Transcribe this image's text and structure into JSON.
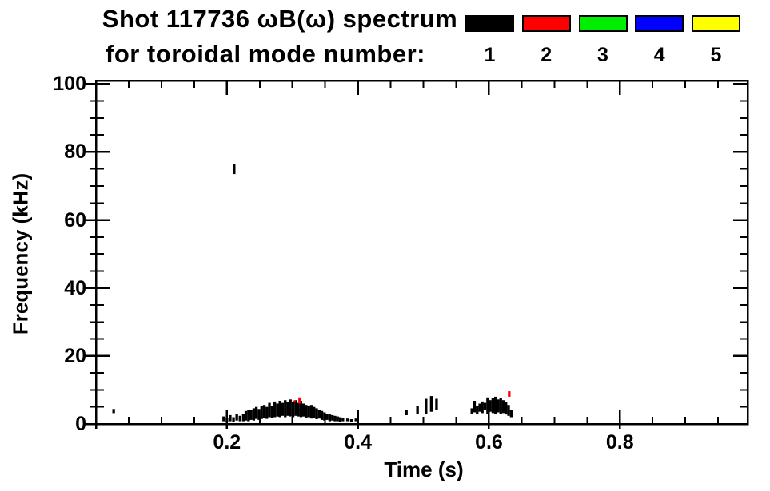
{
  "title": {
    "line1": "Shot 117736 ωB(ω) spectrum",
    "line2": "for toroidal mode number:"
  },
  "legend": {
    "entries": [
      {
        "label": "1",
        "color": "#000000"
      },
      {
        "label": "2",
        "color": "#ff0000"
      },
      {
        "label": "3",
        "color": "#00ee00"
      },
      {
        "label": "4",
        "color": "#0000ff"
      },
      {
        "label": "5",
        "color": "#ffff00"
      }
    ],
    "border_color": "#000000"
  },
  "chart_data": {
    "type": "scatter",
    "title": "Shot 117736 ωB(ω) spectrum for toroidal mode number: 1 2 3 4 5",
    "xlabel": "Time (s)",
    "ylabel": "Frequency (kHz)",
    "xlim": [
      0,
      0.995
    ],
    "ylim": [
      0,
      101
    ],
    "x_major_ticks": [
      0.2,
      0.4,
      0.6,
      0.8
    ],
    "x_tick_labels": [
      "0.2",
      "0.4",
      "0.6",
      "0.8"
    ],
    "x_minor_step": 0.05,
    "y_major_ticks": [
      0,
      20,
      40,
      60,
      80,
      100
    ],
    "y_tick_labels": [
      "0",
      "20",
      "40",
      "60",
      "80",
      "100"
    ],
    "y_minor_step": 5,
    "grid": false,
    "legend_position": "top-right",
    "axis_color": "#000000",
    "background_color": "#ffffff",
    "series": [
      {
        "name": "mode 1",
        "color": "#000000",
        "bands": [
          [
            0.027,
            3.2,
            4.4
          ],
          [
            0.211,
            73.5,
            76.5
          ],
          [
            0.195,
            0.8,
            2.2
          ],
          [
            0.2,
            0.5,
            1.8
          ],
          [
            0.205,
            0.8,
            2.6
          ],
          [
            0.21,
            0.5,
            2.0
          ],
          [
            0.215,
            1.0,
            3.0
          ],
          [
            0.22,
            0.8,
            2.4
          ],
          [
            0.225,
            0.8,
            3.0
          ],
          [
            0.229,
            1.0,
            3.8
          ],
          [
            0.233,
            0.8,
            4.2
          ],
          [
            0.237,
            1.2,
            4.0
          ],
          [
            0.241,
            1.0,
            4.6
          ],
          [
            0.245,
            1.5,
            5.0
          ],
          [
            0.249,
            1.2,
            4.4
          ],
          [
            0.253,
            1.5,
            5.2
          ],
          [
            0.257,
            1.8,
            5.6
          ],
          [
            0.261,
            1.5,
            5.0
          ],
          [
            0.265,
            2.0,
            6.2
          ],
          [
            0.269,
            1.8,
            5.4
          ],
          [
            0.273,
            2.0,
            6.6
          ],
          [
            0.277,
            2.2,
            6.0
          ],
          [
            0.281,
            2.0,
            6.8
          ],
          [
            0.285,
            2.4,
            6.2
          ],
          [
            0.289,
            2.0,
            7.0
          ],
          [
            0.293,
            2.4,
            6.4
          ],
          [
            0.297,
            2.2,
            7.2
          ],
          [
            0.301,
            2.0,
            6.6
          ],
          [
            0.305,
            2.4,
            7.0
          ],
          [
            0.309,
            2.2,
            6.2
          ],
          [
            0.313,
            2.0,
            6.8
          ],
          [
            0.317,
            2.2,
            6.0
          ],
          [
            0.321,
            1.8,
            5.6
          ],
          [
            0.325,
            2.0,
            5.2
          ],
          [
            0.329,
            1.6,
            5.6
          ],
          [
            0.333,
            1.8,
            5.0
          ],
          [
            0.337,
            1.4,
            4.6
          ],
          [
            0.341,
            1.6,
            4.2
          ],
          [
            0.345,
            1.2,
            3.8
          ],
          [
            0.349,
            1.0,
            3.4
          ],
          [
            0.353,
            1.2,
            3.0
          ],
          [
            0.357,
            0.8,
            2.8
          ],
          [
            0.361,
            1.0,
            2.6
          ],
          [
            0.365,
            0.8,
            2.4
          ],
          [
            0.369,
            0.8,
            2.2
          ],
          [
            0.373,
            0.6,
            2.0
          ],
          [
            0.377,
            0.8,
            1.8
          ],
          [
            0.384,
            0.8,
            1.6
          ],
          [
            0.39,
            0.6,
            1.4
          ],
          [
            0.397,
            0.8,
            1.6
          ],
          [
            0.474,
            2.6,
            4.0
          ],
          [
            0.491,
            3.0,
            5.4
          ],
          [
            0.504,
            3.0,
            7.4
          ],
          [
            0.512,
            3.6,
            8.2
          ],
          [
            0.52,
            4.0,
            7.4
          ],
          [
            0.574,
            3.0,
            4.6
          ],
          [
            0.578,
            3.4,
            6.8
          ],
          [
            0.582,
            3.0,
            5.2
          ],
          [
            0.586,
            3.6,
            6.0
          ],
          [
            0.59,
            3.2,
            6.6
          ],
          [
            0.594,
            4.0,
            6.2
          ],
          [
            0.598,
            3.0,
            7.8
          ],
          [
            0.602,
            3.6,
            7.0
          ],
          [
            0.606,
            3.2,
            7.6
          ],
          [
            0.61,
            3.0,
            8.0
          ],
          [
            0.614,
            3.4,
            7.2
          ],
          [
            0.618,
            3.0,
            7.6
          ],
          [
            0.622,
            3.2,
            7.0
          ],
          [
            0.626,
            2.8,
            6.4
          ],
          [
            0.63,
            2.4,
            5.6
          ],
          [
            0.634,
            2.0,
            4.2
          ]
        ]
      },
      {
        "name": "mode 2",
        "color": "#ff0000",
        "bands": [
          [
            0.303,
            6.4,
            6.9
          ],
          [
            0.311,
            6.0,
            7.8
          ],
          [
            0.631,
            8.0,
            9.6
          ]
        ]
      },
      {
        "name": "mode 3",
        "color": "#00ee00",
        "bands": []
      },
      {
        "name": "mode 4",
        "color": "#0000ff",
        "bands": []
      },
      {
        "name": "mode 5",
        "color": "#ffff00",
        "bands": []
      }
    ]
  }
}
